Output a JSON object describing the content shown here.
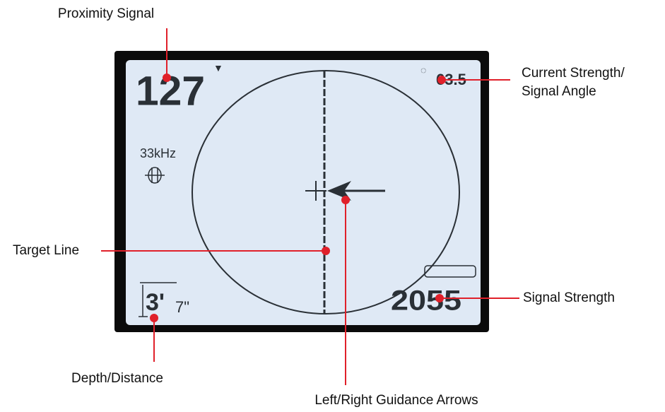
{
  "screen": {
    "proximity": "127",
    "current": "63.5",
    "frequency": "33kHz",
    "depth_feet": "3'",
    "depth_inches": "7\"",
    "signal_strength": "2055"
  },
  "callouts": {
    "proximity": "Proximity Signal",
    "current": [
      "Current Strength/",
      "Signal Angle"
    ],
    "target": "Target Line",
    "guidance": "Left/Right Guidance Arrows",
    "strength": "Signal Strength",
    "depth": "Depth/Distance"
  }
}
